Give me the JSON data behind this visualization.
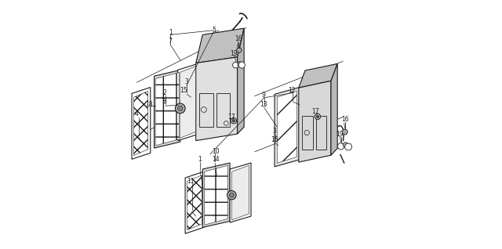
{
  "bg_color": "#ffffff",
  "line_color": "#1a1a1a",
  "fig_width": 6.4,
  "fig_height": 3.18,
  "dpi": 100
}
